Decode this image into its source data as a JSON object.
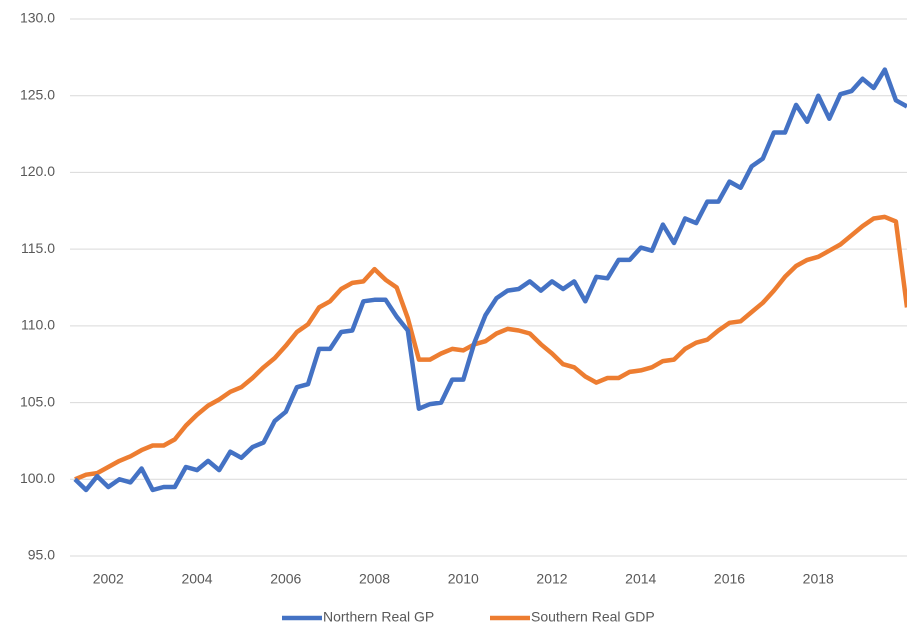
{
  "chart_data": {
    "type": "line",
    "categories": [
      null,
      null,
      null,
      "2002",
      null,
      null,
      null,
      null,
      null,
      null,
      null,
      "2004",
      null,
      null,
      null,
      null,
      null,
      null,
      null,
      "2006",
      null,
      null,
      null,
      null,
      null,
      null,
      null,
      "2008",
      null,
      null,
      null,
      null,
      null,
      null,
      null,
      "2010",
      null,
      null,
      null,
      null,
      null,
      null,
      null,
      "2012",
      null,
      null,
      null,
      null,
      null,
      null,
      null,
      "2014",
      null,
      null,
      null,
      null,
      null,
      null,
      null,
      "2016",
      null,
      null,
      null,
      null,
      null,
      null,
      null,
      "2018",
      null,
      null,
      null,
      null,
      null,
      null,
      null,
      null
    ],
    "series": [
      {
        "name": "Northern Real GP",
        "color": "#4472c4",
        "values": [
          100.0,
          99.3,
          100.2,
          99.5,
          100.0,
          99.8,
          100.7,
          99.3,
          99.5,
          99.5,
          100.8,
          100.6,
          101.2,
          100.6,
          101.8,
          101.4,
          102.1,
          102.4,
          103.8,
          104.4,
          106.0,
          106.2,
          108.5,
          108.5,
          109.6,
          109.7,
          111.6,
          111.7,
          111.7,
          110.6,
          109.7,
          104.6,
          104.9,
          105.0,
          106.5,
          106.5,
          108.9,
          110.7,
          111.8,
          112.3,
          112.4,
          112.9,
          112.3,
          112.9,
          112.4,
          112.9,
          111.6,
          113.2,
          113.1,
          114.3,
          114.3,
          115.1,
          114.9,
          116.6,
          115.4,
          117.0,
          116.7,
          118.1,
          118.1,
          119.4,
          119.0,
          120.4,
          120.9,
          122.6,
          122.6,
          124.4,
          123.3,
          125.0,
          123.5,
          125.1,
          125.3,
          126.1,
          125.5,
          126.7,
          124.7,
          124.3
        ]
      },
      {
        "name": "Southern Real GDP",
        "color": "#ed7d31",
        "values": [
          100.0,
          100.3,
          100.4,
          100.8,
          101.2,
          101.5,
          101.9,
          102.2,
          102.2,
          102.6,
          103.5,
          104.2,
          104.8,
          105.2,
          105.7,
          106.0,
          106.6,
          107.3,
          107.9,
          108.7,
          109.6,
          110.1,
          111.2,
          111.6,
          112.4,
          112.8,
          112.9,
          113.7,
          113.0,
          112.5,
          110.5,
          107.8,
          107.8,
          108.2,
          108.5,
          108.4,
          108.8,
          109.0,
          109.5,
          109.8,
          109.7,
          109.5,
          108.8,
          108.2,
          107.5,
          107.3,
          106.7,
          106.3,
          106.6,
          106.6,
          107.0,
          107.1,
          107.3,
          107.7,
          107.8,
          108.5,
          108.9,
          109.1,
          109.7,
          110.2,
          110.3,
          110.9,
          111.5,
          112.3,
          113.2,
          113.9,
          114.3,
          114.5,
          114.9,
          115.3,
          115.9,
          116.5,
          117.0,
          117.1,
          116.8,
          111.2
        ]
      }
    ],
    "ylim": [
      95,
      130
    ],
    "yticks": [
      {
        "value": 95,
        "label": "95.0"
      },
      {
        "value": 100,
        "label": "100.0"
      },
      {
        "value": 105,
        "label": "105.0"
      },
      {
        "value": 110,
        "label": "110.0"
      },
      {
        "value": 115,
        "label": "115.0"
      },
      {
        "value": 120,
        "label": "120.0"
      },
      {
        "value": 125,
        "label": "125.0"
      },
      {
        "value": 130,
        "label": "130.0"
      }
    ],
    "grid": true,
    "legend": "bottom"
  }
}
